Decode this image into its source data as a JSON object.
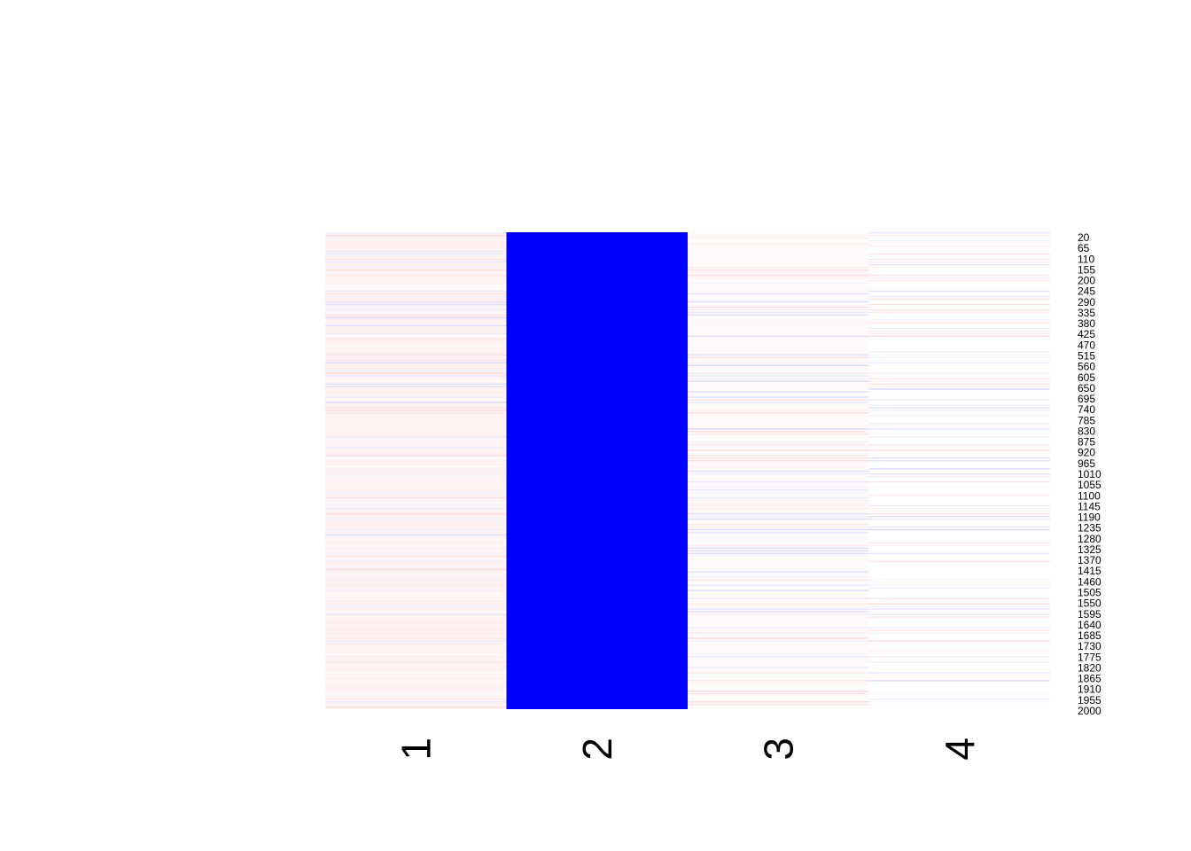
{
  "chart_data": {
    "type": "heatmap",
    "title": "",
    "xlabel": "",
    "ylabel": "",
    "columns": [
      "1",
      "2",
      "3",
      "4"
    ],
    "row_tick_labels": [
      "20",
      "65",
      "110",
      "155",
      "200",
      "245",
      "290",
      "335",
      "380",
      "425",
      "470",
      "515",
      "560",
      "605",
      "650",
      "695",
      "740",
      "785",
      "830",
      "875",
      "920",
      "965",
      "1010",
      "1055",
      "1100",
      "1145",
      "1190",
      "1235",
      "1280",
      "1325",
      "1370",
      "1415",
      "1460",
      "1505",
      "1550",
      "1595",
      "1640",
      "1685",
      "1730",
      "1775",
      "1820",
      "1865",
      "1910",
      "1955",
      "2000"
    ],
    "row_count": 2000,
    "column_values": [
      {
        "name": "1",
        "value": 0.05
      },
      {
        "name": "2",
        "value": -1.0
      },
      {
        "name": "3",
        "value": 0.02
      },
      {
        "name": "4",
        "value": 0.0
      }
    ],
    "color_scale": {
      "low": "#0000ff",
      "mid": "#ffffff",
      "high": "#ff0000"
    },
    "legend": "none",
    "grid": false
  }
}
